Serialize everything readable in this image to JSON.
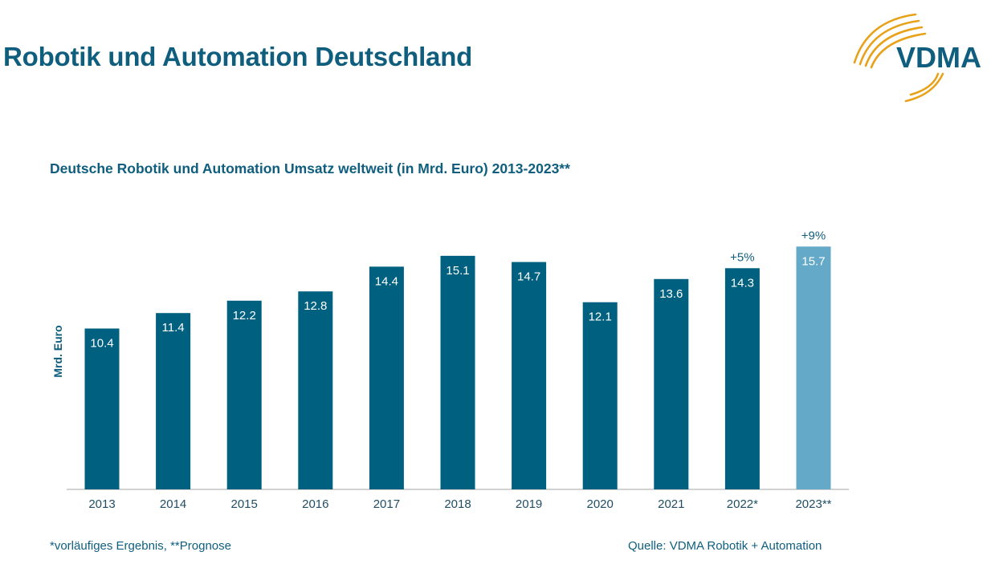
{
  "header": {
    "title": "Robotik und Automation Deutschland",
    "logo_text": "VDMA"
  },
  "colors": {
    "primary": "#00607f",
    "forecast": "#65a9c8",
    "text": "#0f5e7e",
    "logo_orange": "#e8a21a"
  },
  "chart_data": {
    "type": "bar",
    "title": "Deutsche Robotik und Automation Umsatz weltweit (in Mrd. Euro) 2013-2023**",
    "ylabel": "Mrd. Euro",
    "xlabel": "",
    "ylim": [
      0,
      17
    ],
    "grid": false,
    "categories": [
      "2013",
      "2014",
      "2015",
      "2016",
      "2017",
      "2018",
      "2019",
      "2020",
      "2021",
      "2022*",
      "2023**"
    ],
    "values": [
      10.4,
      11.4,
      12.2,
      12.8,
      14.4,
      15.1,
      14.7,
      12.1,
      13.6,
      14.3,
      15.7
    ],
    "value_labels": [
      "10.4",
      "11.4",
      "12.2",
      "12.8",
      "14.4",
      "15.1",
      "14.7",
      "12.1",
      "13.6",
      "14.3",
      "15.7"
    ],
    "annotations": [
      {
        "category": "2022*",
        "text": "+5%"
      },
      {
        "category": "2023**",
        "text": "+9%"
      }
    ],
    "highlight_category": "2023**"
  },
  "footer": {
    "note": "*vorläufiges Ergebnis, **Prognose",
    "source": "Quelle: VDMA Robotik + Automation"
  }
}
